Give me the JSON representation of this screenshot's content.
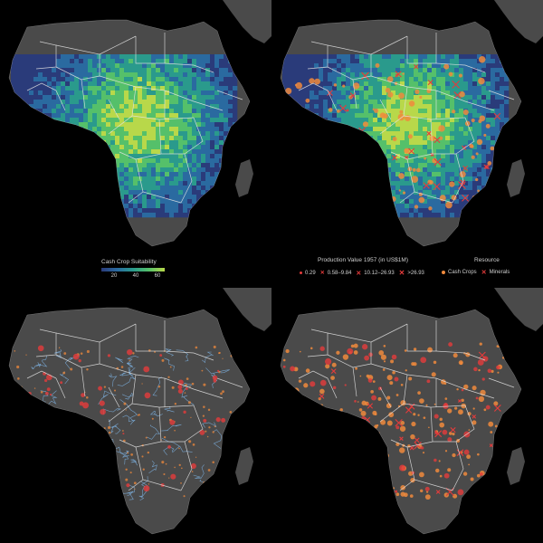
{
  "legend_suitability": {
    "title": "Cash Crop Suitability",
    "ticks": [
      "20",
      "40",
      "60"
    ],
    "colors": [
      "#2a3b7a",
      "#2a6aa0",
      "#2a9a8c",
      "#55c06a",
      "#b8d84a"
    ]
  },
  "legend_production": {
    "title": "Production Value 1957 (in US$1M)",
    "items": [
      "0.29",
      "0.58–9.84",
      "10.12–26.93",
      ">26.93"
    ],
    "color": "#e53b3b"
  },
  "legend_resource": {
    "title": "Resource",
    "items": [
      {
        "label": "Cash Crops",
        "icon": "orange-dot-icon",
        "color": "#f08a3c"
      },
      {
        "label": "Minerals",
        "icon": "red-cross-icon",
        "color": "#e53b3b"
      }
    ]
  },
  "map_colors": {
    "land": "#4a4a4a",
    "border": "#e6e6e6",
    "background": "#000000",
    "cash_crop": "#f08a3c",
    "mineral": "#e53b3b"
  }
}
